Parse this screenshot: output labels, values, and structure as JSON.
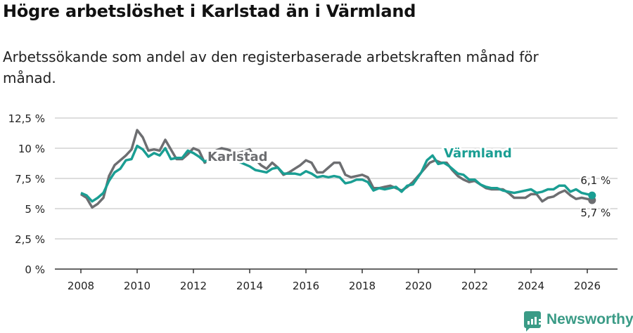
{
  "title": "Högre arbetslöshet i Karlstad än i Värmland",
  "subtitle": "Arbetssökande som andel av den registerbaserade arbetskraften månad för månad.",
  "brand": "Newsworthy",
  "chart_data": {
    "type": "line",
    "title": "Högre arbetslöshet i Karlstad än i Värmland",
    "ylim": [
      0,
      12.5
    ],
    "xlim": [
      2007.1,
      2027.0
    ],
    "yticks": [
      {
        "v": 0,
        "label": "0 %"
      },
      {
        "v": 2.5,
        "label": "2,5 %"
      },
      {
        "v": 5,
        "label": "5 %"
      },
      {
        "v": 7.5,
        "label": "7,5 %"
      },
      {
        "v": 10,
        "label": "10 %"
      },
      {
        "v": 12.5,
        "label": "12,5 %"
      }
    ],
    "xticks": [
      {
        "v": 2008,
        "label": "2008"
      },
      {
        "v": 2010,
        "label": "2010"
      },
      {
        "v": 2012,
        "label": "2012"
      },
      {
        "v": 2014,
        "label": "2014"
      },
      {
        "v": 2016,
        "label": "2016"
      },
      {
        "v": 2018,
        "label": "2018"
      },
      {
        "v": 2020,
        "label": "2020"
      },
      {
        "v": 2022,
        "label": "2022"
      },
      {
        "v": 2024,
        "label": "2024"
      },
      {
        "v": 2026,
        "label": "2026"
      }
    ],
    "grid": true,
    "series": [
      {
        "name": "Karlstad",
        "color": "#6d6e71",
        "label_at": [
          2014.0,
          8.95
        ],
        "end_label": "5,7 %",
        "points": [
          [
            2008.0,
            6.2
          ],
          [
            2008.2,
            5.9
          ],
          [
            2008.4,
            5.1
          ],
          [
            2008.6,
            5.4
          ],
          [
            2008.8,
            5.9
          ],
          [
            2009.0,
            7.7
          ],
          [
            2009.2,
            8.6
          ],
          [
            2009.4,
            9.0
          ],
          [
            2009.6,
            9.4
          ],
          [
            2009.8,
            9.9
          ],
          [
            2010.0,
            11.5
          ],
          [
            2010.2,
            10.9
          ],
          [
            2010.4,
            9.8
          ],
          [
            2010.6,
            9.9
          ],
          [
            2010.8,
            9.8
          ],
          [
            2011.0,
            10.7
          ],
          [
            2011.2,
            9.9
          ],
          [
            2011.4,
            9.1
          ],
          [
            2011.6,
            9.1
          ],
          [
            2011.8,
            9.5
          ],
          [
            2012.0,
            10.0
          ],
          [
            2012.2,
            9.8
          ],
          [
            2012.4,
            8.8
          ],
          [
            2012.6,
            9.1
          ],
          [
            2012.8,
            9.8
          ],
          [
            2013.0,
            10.0
          ],
          [
            2013.2,
            9.9
          ],
          [
            2013.6,
            9.6
          ],
          [
            2014.0,
            9.9
          ],
          [
            2014.2,
            9.1
          ],
          [
            2014.4,
            8.6
          ],
          [
            2014.6,
            8.3
          ],
          [
            2014.8,
            8.8
          ],
          [
            2015.0,
            8.4
          ],
          [
            2015.2,
            7.8
          ],
          [
            2015.4,
            8.0
          ],
          [
            2015.6,
            8.3
          ],
          [
            2015.8,
            8.6
          ],
          [
            2016.0,
            9.0
          ],
          [
            2016.2,
            8.8
          ],
          [
            2016.4,
            8.0
          ],
          [
            2016.6,
            8.0
          ],
          [
            2016.8,
            8.4
          ],
          [
            2017.0,
            8.8
          ],
          [
            2017.2,
            8.8
          ],
          [
            2017.4,
            7.8
          ],
          [
            2017.6,
            7.6
          ],
          [
            2017.8,
            7.7
          ],
          [
            2018.0,
            7.8
          ],
          [
            2018.2,
            7.6
          ],
          [
            2018.4,
            6.7
          ],
          [
            2018.6,
            6.7
          ],
          [
            2018.8,
            6.8
          ],
          [
            2019.0,
            6.9
          ],
          [
            2019.2,
            6.7
          ],
          [
            2019.4,
            6.5
          ],
          [
            2019.6,
            6.8
          ],
          [
            2019.8,
            7.2
          ],
          [
            2020.1,
            8.0
          ],
          [
            2020.4,
            8.8
          ],
          [
            2020.6,
            9.0
          ],
          [
            2020.8,
            8.8
          ],
          [
            2021.0,
            8.8
          ],
          [
            2021.2,
            8.2
          ],
          [
            2021.4,
            7.7
          ],
          [
            2021.6,
            7.4
          ],
          [
            2021.8,
            7.2
          ],
          [
            2022.0,
            7.3
          ],
          [
            2022.2,
            7.0
          ],
          [
            2022.4,
            6.7
          ],
          [
            2022.6,
            6.6
          ],
          [
            2022.8,
            6.6
          ],
          [
            2023.0,
            6.6
          ],
          [
            2023.2,
            6.3
          ],
          [
            2023.4,
            5.9
          ],
          [
            2023.6,
            5.9
          ],
          [
            2023.8,
            5.9
          ],
          [
            2024.0,
            6.2
          ],
          [
            2024.2,
            6.2
          ],
          [
            2024.4,
            5.6
          ],
          [
            2024.6,
            5.9
          ],
          [
            2024.8,
            6.0
          ],
          [
            2025.0,
            6.3
          ],
          [
            2025.2,
            6.5
          ],
          [
            2025.4,
            6.1
          ],
          [
            2025.6,
            5.8
          ],
          [
            2025.8,
            5.9
          ],
          [
            2026.0,
            5.8
          ],
          [
            2026.17,
            5.7
          ]
        ]
      },
      {
        "name": "Värmland",
        "color": "#1a9e93",
        "label_at": [
          2006.9,
          9.25
        ],
        "end_label": "6,1 %",
        "points": [
          [
            2008.0,
            6.3
          ],
          [
            2008.2,
            6.1
          ],
          [
            2008.4,
            5.6
          ],
          [
            2008.6,
            5.9
          ],
          [
            2008.8,
            6.3
          ],
          [
            2009.0,
            7.3
          ],
          [
            2009.2,
            8.0
          ],
          [
            2009.4,
            8.3
          ],
          [
            2009.6,
            9.0
          ],
          [
            2009.8,
            9.1
          ],
          [
            2010.0,
            10.2
          ],
          [
            2010.2,
            9.9
          ],
          [
            2010.4,
            9.3
          ],
          [
            2010.6,
            9.6
          ],
          [
            2010.8,
            9.4
          ],
          [
            2011.0,
            10.0
          ],
          [
            2011.2,
            9.1
          ],
          [
            2011.4,
            9.2
          ],
          [
            2011.6,
            9.2
          ],
          [
            2011.8,
            9.8
          ],
          [
            2012.0,
            9.6
          ],
          [
            2012.2,
            9.3
          ],
          [
            2012.4,
            8.9
          ],
          [
            2012.6,
            9.1
          ],
          [
            2012.8,
            9.0
          ],
          [
            2013.0,
            9.3
          ],
          [
            2013.5,
            9.0
          ],
          [
            2014.0,
            8.5
          ],
          [
            2014.2,
            8.2
          ],
          [
            2014.4,
            8.1
          ],
          [
            2014.6,
            8.0
          ],
          [
            2014.8,
            8.3
          ],
          [
            2015.0,
            8.4
          ],
          [
            2015.2,
            7.9
          ],
          [
            2015.4,
            7.9
          ],
          [
            2015.6,
            7.9
          ],
          [
            2015.8,
            7.8
          ],
          [
            2016.0,
            8.1
          ],
          [
            2016.2,
            7.9
          ],
          [
            2016.4,
            7.6
          ],
          [
            2016.6,
            7.7
          ],
          [
            2016.8,
            7.6
          ],
          [
            2017.0,
            7.7
          ],
          [
            2017.2,
            7.6
          ],
          [
            2017.4,
            7.1
          ],
          [
            2017.6,
            7.2
          ],
          [
            2017.8,
            7.4
          ],
          [
            2018.0,
            7.4
          ],
          [
            2018.2,
            7.2
          ],
          [
            2018.4,
            6.5
          ],
          [
            2018.6,
            6.7
          ],
          [
            2018.8,
            6.6
          ],
          [
            2019.0,
            6.7
          ],
          [
            2019.2,
            6.8
          ],
          [
            2019.4,
            6.4
          ],
          [
            2019.6,
            6.9
          ],
          [
            2019.8,
            7.0
          ],
          [
            2020.1,
            8.0
          ],
          [
            2020.3,
            9.0
          ],
          [
            2020.5,
            9.4
          ],
          [
            2020.7,
            8.7
          ],
          [
            2020.9,
            8.8
          ],
          [
            2021.1,
            8.5
          ],
          [
            2021.4,
            7.9
          ],
          [
            2021.6,
            7.8
          ],
          [
            2021.8,
            7.4
          ],
          [
            2022.0,
            7.4
          ],
          [
            2022.2,
            7.0
          ],
          [
            2022.4,
            6.8
          ],
          [
            2022.6,
            6.7
          ],
          [
            2022.8,
            6.7
          ],
          [
            2023.0,
            6.5
          ],
          [
            2023.2,
            6.4
          ],
          [
            2023.4,
            6.3
          ],
          [
            2023.6,
            6.4
          ],
          [
            2023.8,
            6.5
          ],
          [
            2024.0,
            6.6
          ],
          [
            2024.2,
            6.3
          ],
          [
            2024.4,
            6.4
          ],
          [
            2024.6,
            6.6
          ],
          [
            2024.8,
            6.6
          ],
          [
            2025.0,
            6.9
          ],
          [
            2025.2,
            6.9
          ],
          [
            2025.4,
            6.4
          ],
          [
            2025.6,
            6.6
          ],
          [
            2025.8,
            6.3
          ],
          [
            2026.0,
            6.2
          ],
          [
            2026.17,
            6.1
          ]
        ]
      }
    ]
  }
}
